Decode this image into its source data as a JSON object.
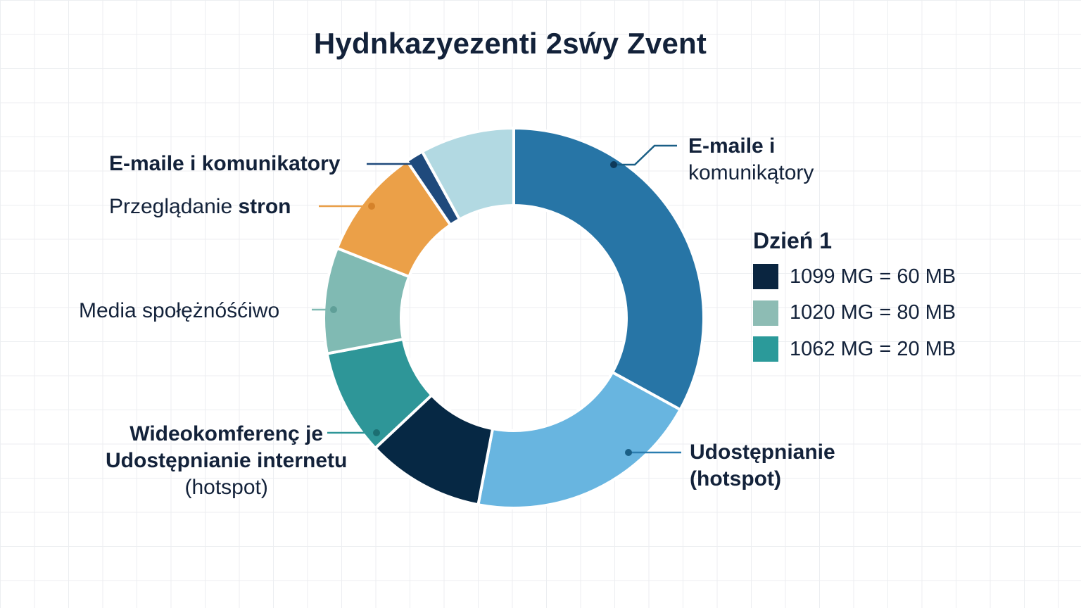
{
  "title": "Hydnkazyezenti 2sẃy Zvent",
  "chart_data": {
    "type": "pie",
    "variant": "donut",
    "title": "Hydnkazyezenti 2sẃy Zvent",
    "slices": [
      {
        "label": "E-maile i komunikątory",
        "value": 33,
        "color": "#2775a6"
      },
      {
        "label": "Udostępnianie (hotspot)",
        "value": 20,
        "color": "#68b5e0"
      },
      {
        "label": "Udostępnianie internetu (hotspot)",
        "value": 10,
        "color": "#062844"
      },
      {
        "label": "Wideokomferenç je",
        "value": 9,
        "color": "#2e9698"
      },
      {
        "label": "Media społężnóśćiwo",
        "value": 9,
        "color": "#80bab3"
      },
      {
        "label": "Przeglądanie stron",
        "value": 9.5,
        "color": "#eba048"
      },
      {
        "label": "E-maile i komunikatory",
        "value": 1.5,
        "color": "#1f4a7c"
      },
      {
        "label": "",
        "value": 8,
        "color": "#b2d9e2"
      }
    ],
    "legend_placement": "right",
    "grid": true
  },
  "labels": {
    "emaile_left": "E-maile i komunikatory",
    "przegladanie_regular": "Przeglądanie ",
    "przegladanie_bold": "stron",
    "media": "Media społężnóśćiwo",
    "wideo_line1": "Wideokomferenç je",
    "wideo_line2": "Udostępnianie internetu",
    "wideo_line3": "(hotspot)",
    "emaile_right_line1": "E-maile i",
    "emaile_right_line2": "komunikątory",
    "udost_right_line1": "Udostępnianie",
    "udost_right_line2": "(hotspot)"
  },
  "legend": {
    "title": "Dzień 1",
    "items": [
      {
        "text": "1099 MG = 60 MB",
        "color": "#0a2540"
      },
      {
        "text": "1020 MG = 80 MB",
        "color": "#8dbcb4"
      },
      {
        "text": "1062 MG = 20 MB",
        "color": "#2b9a9a"
      }
    ]
  }
}
